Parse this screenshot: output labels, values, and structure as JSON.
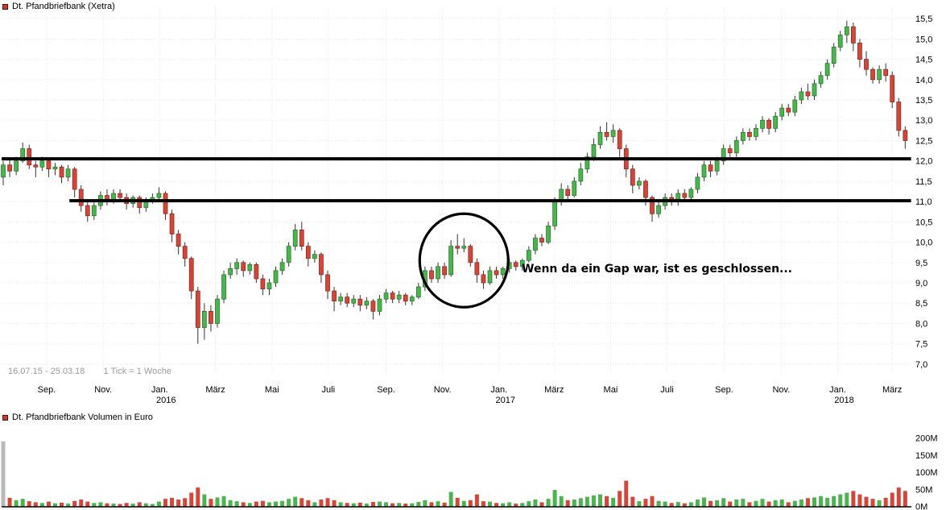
{
  "colors": {
    "up_fill": "#4db350",
    "up_stroke": "#1d7a22",
    "down_fill": "#d3473a",
    "down_stroke": "#8e2318",
    "wick": "#333333",
    "trendline": "#000000",
    "grid": "#e7e7e7",
    "axis_text": "#000000",
    "muted_text": "#9b9b9b",
    "volume_first_bar": "#b8b8b8",
    "legend_swatch": "#cf3b2f",
    "legend_swatch_border": "#4a120c"
  },
  "chart_data": [
    {
      "type": "candlestick",
      "title": "Dt. Pfandbriefbank (Xetra)",
      "x_range": "16.07.15 - 25.03.18",
      "interval": "1 Tick = 1 Woche",
      "ylim": [
        7.0,
        15.5
      ],
      "grid": "faint dotted",
      "y_axis_position": "right",
      "y_ticks": [
        {
          "label": "15,5",
          "value": 15.5
        },
        {
          "label": "15,0",
          "value": 15.0
        },
        {
          "label": "14,5",
          "value": 14.5
        },
        {
          "label": "14,0",
          "value": 14.0
        },
        {
          "label": "13,5",
          "value": 13.5
        },
        {
          "label": "13,0",
          "value": 13.0
        },
        {
          "label": "12,5",
          "value": 12.5
        },
        {
          "label": "12,0",
          "value": 12.0
        },
        {
          "label": "11,5",
          "value": 11.5
        },
        {
          "label": "11,0",
          "value": 11.0
        },
        {
          "label": "10,5",
          "value": 10.5
        },
        {
          "label": "10,0",
          "value": 10.0
        },
        {
          "label": "9,5",
          "value": 9.5
        },
        {
          "label": "9,0",
          "value": 9.0
        },
        {
          "label": "8,5",
          "value": 8.5
        },
        {
          "label": "8,0",
          "value": 8.0
        },
        {
          "label": "7,5",
          "value": 7.5
        },
        {
          "label": "7,0",
          "value": 7.0
        }
      ],
      "x_ticks": [
        {
          "label": "Sep.",
          "week": 6.7
        },
        {
          "label": "Nov.",
          "week": 15.4
        },
        {
          "label": "Jan.",
          "week": 24.1,
          "year": "2016"
        },
        {
          "label": "März",
          "week": 32.7
        },
        {
          "label": "Mai",
          "week": 41.4
        },
        {
          "label": "Juli",
          "week": 50.1
        },
        {
          "label": "Sep.",
          "week": 59.0
        },
        {
          "label": "Nov.",
          "week": 67.7
        },
        {
          "label": "Jan.",
          "week": 76.4,
          "year": "2017"
        },
        {
          "label": "März",
          "week": 84.9
        },
        {
          "label": "Mai",
          "week": 93.6
        },
        {
          "label": "Juli",
          "week": 102.3
        },
        {
          "label": "Sep.",
          "week": 111.1
        },
        {
          "label": "Nov.",
          "week": 119.9
        },
        {
          "label": "Jan.",
          "week": 128.6,
          "year": "2018"
        },
        {
          "label": "März",
          "week": 137.0
        }
      ],
      "trendlines": [
        {
          "price": 12.05,
          "from_week": -0.25,
          "to_week": 139.9,
          "color": "#000000",
          "width": 4
        },
        {
          "price": 11.02,
          "from_week": 10.2,
          "to_week": 139.9,
          "color": "#000000",
          "width": 4
        }
      ],
      "annotations": {
        "text": "Wenn da ein Gap war, ist es geschlossen...",
        "circle": {
          "center_week": 71,
          "center_price": 9.55,
          "radius_px": 55
        }
      },
      "candles_ohlc": [
        [
          11.6,
          12.0,
          11.4,
          11.9
        ],
        [
          11.9,
          12.05,
          11.6,
          11.75
        ],
        [
          11.75,
          12.1,
          11.65,
          12.0
        ],
        [
          12.0,
          12.45,
          11.95,
          12.3
        ],
        [
          12.3,
          12.4,
          11.8,
          11.9
        ],
        [
          11.9,
          12.0,
          11.6,
          11.85
        ],
        [
          11.85,
          12.1,
          11.75,
          12.0
        ],
        [
          12.0,
          12.05,
          11.6,
          11.8
        ],
        [
          11.8,
          11.95,
          11.65,
          11.85
        ],
        [
          11.85,
          11.9,
          11.45,
          11.6
        ],
        [
          11.6,
          11.9,
          11.5,
          11.8
        ],
        [
          11.8,
          11.85,
          11.1,
          11.3
        ],
        [
          11.3,
          11.4,
          10.75,
          10.9
        ],
        [
          10.9,
          11.0,
          10.5,
          10.65
        ],
        [
          10.65,
          11.0,
          10.55,
          10.9
        ],
        [
          10.9,
          11.25,
          10.8,
          11.15
        ],
        [
          11.15,
          11.3,
          10.9,
          11.05
        ],
        [
          11.05,
          11.3,
          10.95,
          11.2
        ],
        [
          11.2,
          11.3,
          11.0,
          11.1
        ],
        [
          11.1,
          11.2,
          10.8,
          10.95
        ],
        [
          10.95,
          11.15,
          10.85,
          11.1
        ],
        [
          11.1,
          11.15,
          10.7,
          10.85
        ],
        [
          10.85,
          11.1,
          10.75,
          11.05
        ],
        [
          11.05,
          11.2,
          10.95,
          11.1
        ],
        [
          11.1,
          11.35,
          11.0,
          11.2
        ],
        [
          11.2,
          11.25,
          10.55,
          10.7
        ],
        [
          10.7,
          10.8,
          10.0,
          10.2
        ],
        [
          10.2,
          10.3,
          9.7,
          9.9
        ],
        [
          9.9,
          10.0,
          9.4,
          9.6
        ],
        [
          9.6,
          9.65,
          8.6,
          8.8
        ],
        [
          8.8,
          8.9,
          7.5,
          7.9
        ],
        [
          7.9,
          8.5,
          7.6,
          8.3
        ],
        [
          8.3,
          8.45,
          7.8,
          8.0
        ],
        [
          8.0,
          8.7,
          7.9,
          8.6
        ],
        [
          8.6,
          9.3,
          8.5,
          9.2
        ],
        [
          9.2,
          9.5,
          9.1,
          9.35
        ],
        [
          9.35,
          9.6,
          9.2,
          9.5
        ],
        [
          9.5,
          9.55,
          9.15,
          9.3
        ],
        [
          9.3,
          9.5,
          9.2,
          9.45
        ],
        [
          9.45,
          9.5,
          9.0,
          9.1
        ],
        [
          9.1,
          9.2,
          8.7,
          8.85
        ],
        [
          8.85,
          9.1,
          8.7,
          9.0
        ],
        [
          9.0,
          9.4,
          8.9,
          9.3
        ],
        [
          9.3,
          9.6,
          9.2,
          9.5
        ],
        [
          9.5,
          10.0,
          9.4,
          9.9
        ],
        [
          9.9,
          10.45,
          9.8,
          10.3
        ],
        [
          10.3,
          10.5,
          9.8,
          9.9
        ],
        [
          9.9,
          10.0,
          9.4,
          9.6
        ],
        [
          9.6,
          9.8,
          9.5,
          9.7
        ],
        [
          9.7,
          9.75,
          9.0,
          9.2
        ],
        [
          9.2,
          9.3,
          8.6,
          8.8
        ],
        [
          8.8,
          8.9,
          8.3,
          8.55
        ],
        [
          8.55,
          8.75,
          8.45,
          8.65
        ],
        [
          8.65,
          8.75,
          8.4,
          8.5
        ],
        [
          8.5,
          8.7,
          8.4,
          8.6
        ],
        [
          8.6,
          8.7,
          8.3,
          8.45
        ],
        [
          8.45,
          8.65,
          8.35,
          8.55
        ],
        [
          8.55,
          8.6,
          8.1,
          8.3
        ],
        [
          8.3,
          8.7,
          8.2,
          8.6
        ],
        [
          8.6,
          8.85,
          8.5,
          8.75
        ],
        [
          8.75,
          8.8,
          8.5,
          8.6
        ],
        [
          8.6,
          8.8,
          8.5,
          8.7
        ],
        [
          8.7,
          8.75,
          8.45,
          8.55
        ],
        [
          8.55,
          8.7,
          8.45,
          8.65
        ],
        [
          8.65,
          9.0,
          8.6,
          8.9
        ],
        [
          8.9,
          9.4,
          8.8,
          9.3
        ],
        [
          9.3,
          9.4,
          9.0,
          9.1
        ],
        [
          9.1,
          9.5,
          9.0,
          9.4
        ],
        [
          9.4,
          9.5,
          9.1,
          9.2
        ],
        [
          9.2,
          10.05,
          9.15,
          9.9
        ],
        [
          9.9,
          10.2,
          9.7,
          9.85
        ],
        [
          9.85,
          10.1,
          9.75,
          9.9
        ],
        [
          9.9,
          9.95,
          9.4,
          9.5
        ],
        [
          9.5,
          9.6,
          9.0,
          9.2
        ],
        [
          9.2,
          9.3,
          8.85,
          9.0
        ],
        [
          9.0,
          9.4,
          8.95,
          9.3
        ],
        [
          9.3,
          9.4,
          9.1,
          9.2
        ],
        [
          9.2,
          9.4,
          9.1,
          9.35
        ],
        [
          9.35,
          9.6,
          9.25,
          9.5
        ],
        [
          9.5,
          9.55,
          9.3,
          9.4
        ],
        [
          9.4,
          9.6,
          9.3,
          9.55
        ],
        [
          9.55,
          9.9,
          9.5,
          9.8
        ],
        [
          9.8,
          10.2,
          9.7,
          10.1
        ],
        [
          10.1,
          10.2,
          9.9,
          10.0
        ],
        [
          10.0,
          10.5,
          9.95,
          10.4
        ],
        [
          10.4,
          11.1,
          10.3,
          11.0
        ],
        [
          11.0,
          11.45,
          10.9,
          11.3
        ],
        [
          11.3,
          11.4,
          11.0,
          11.15
        ],
        [
          11.15,
          11.6,
          11.1,
          11.5
        ],
        [
          11.5,
          11.95,
          11.4,
          11.8
        ],
        [
          11.8,
          12.2,
          11.7,
          12.1
        ],
        [
          12.1,
          12.55,
          12.0,
          12.4
        ],
        [
          12.4,
          12.85,
          12.3,
          12.7
        ],
        [
          12.7,
          12.95,
          12.5,
          12.6
        ],
        [
          12.6,
          12.9,
          12.45,
          12.75
        ],
        [
          12.75,
          12.8,
          12.1,
          12.3
        ],
        [
          12.3,
          12.4,
          11.6,
          11.8
        ],
        [
          11.8,
          11.9,
          11.2,
          11.4
        ],
        [
          11.4,
          11.6,
          11.3,
          11.5
        ],
        [
          11.5,
          11.55,
          10.9,
          11.1
        ],
        [
          11.1,
          11.15,
          10.5,
          10.7
        ],
        [
          10.7,
          11.0,
          10.6,
          10.9
        ],
        [
          10.9,
          11.2,
          10.8,
          11.1
        ],
        [
          11.1,
          11.2,
          10.9,
          11.0
        ],
        [
          11.0,
          11.3,
          10.9,
          11.2
        ],
        [
          11.2,
          11.3,
          11.0,
          11.1
        ],
        [
          11.1,
          11.35,
          11.05,
          11.3
        ],
        [
          11.3,
          11.7,
          11.2,
          11.6
        ],
        [
          11.6,
          12.0,
          11.5,
          11.9
        ],
        [
          11.9,
          12.0,
          11.6,
          11.75
        ],
        [
          11.75,
          12.1,
          11.65,
          12.0
        ],
        [
          12.0,
          12.4,
          11.9,
          12.3
        ],
        [
          12.3,
          12.4,
          12.1,
          12.2
        ],
        [
          12.2,
          12.6,
          12.1,
          12.5
        ],
        [
          12.5,
          12.8,
          12.4,
          12.7
        ],
        [
          12.7,
          12.8,
          12.5,
          12.6
        ],
        [
          12.6,
          12.9,
          12.5,
          12.8
        ],
        [
          12.8,
          13.1,
          12.7,
          13.0
        ],
        [
          13.0,
          13.05,
          12.65,
          12.8
        ],
        [
          12.8,
          13.2,
          12.7,
          13.1
        ],
        [
          13.1,
          13.4,
          13.0,
          13.3
        ],
        [
          13.3,
          13.4,
          13.1,
          13.2
        ],
        [
          13.2,
          13.6,
          13.1,
          13.5
        ],
        [
          13.5,
          13.8,
          13.4,
          13.7
        ],
        [
          13.7,
          13.9,
          13.5,
          13.6
        ],
        [
          13.6,
          14.0,
          13.5,
          13.9
        ],
        [
          13.9,
          14.2,
          13.8,
          14.1
        ],
        [
          14.1,
          14.5,
          14.0,
          14.4
        ],
        [
          14.4,
          14.9,
          14.3,
          14.8
        ],
        [
          14.8,
          15.2,
          14.7,
          15.1
        ],
        [
          15.1,
          15.45,
          14.9,
          15.3
        ],
        [
          15.3,
          15.4,
          14.7,
          14.9
        ],
        [
          14.9,
          15.0,
          14.3,
          14.5
        ],
        [
          14.5,
          14.7,
          14.1,
          14.25
        ],
        [
          14.25,
          14.3,
          13.9,
          14.0
        ],
        [
          14.0,
          14.35,
          13.9,
          14.25
        ],
        [
          14.25,
          14.4,
          13.95,
          14.1
        ],
        [
          14.1,
          14.2,
          13.3,
          13.45
        ],
        [
          13.45,
          13.55,
          12.6,
          12.75
        ],
        [
          12.75,
          12.85,
          12.3,
          12.5
        ]
      ]
    },
    {
      "type": "bar",
      "title": "Dt. Pfandbriefbank Volumen in Euro",
      "ylabel": "Volumen in Euro",
      "ylim_millions": [
        0,
        200
      ],
      "y_axis_position": "right",
      "y_ticks": [
        {
          "label": "200M",
          "value": 200
        },
        {
          "label": "150M",
          "value": 150
        },
        {
          "label": "100M",
          "value": 100
        },
        {
          "label": "50M",
          "value": 50
        },
        {
          "label": "0M",
          "value": 0
        }
      ],
      "bar_color_rule": "green on up week, red on down week, first bar gray",
      "values_millions": [
        190,
        25,
        18,
        22,
        15,
        12,
        10,
        14,
        9,
        11,
        8,
        16,
        20,
        14,
        10,
        12,
        9,
        8,
        7,
        10,
        8,
        12,
        9,
        7,
        14,
        22,
        25,
        20,
        24,
        40,
        55,
        35,
        22,
        26,
        30,
        18,
        15,
        12,
        10,
        14,
        16,
        12,
        14,
        16,
        22,
        28,
        24,
        18,
        12,
        20,
        24,
        18,
        12,
        10,
        9,
        11,
        8,
        13,
        14,
        12,
        9,
        10,
        8,
        9,
        13,
        18,
        12,
        15,
        11,
        42,
        25,
        16,
        18,
        35,
        15,
        14,
        10,
        9,
        12,
        8,
        10,
        15,
        20,
        12,
        22,
        48,
        30,
        18,
        20,
        24,
        28,
        32,
        35,
        30,
        25,
        45,
        75,
        28,
        15,
        22,
        30,
        16,
        14,
        10,
        13,
        9,
        12,
        20,
        26,
        16,
        18,
        24,
        14,
        20,
        22,
        12,
        16,
        22,
        14,
        18,
        20,
        12,
        16,
        20,
        24,
        26,
        30,
        25,
        30,
        35,
        40,
        45,
        35,
        28,
        22,
        18,
        25,
        40,
        55,
        45
      ]
    }
  ]
}
